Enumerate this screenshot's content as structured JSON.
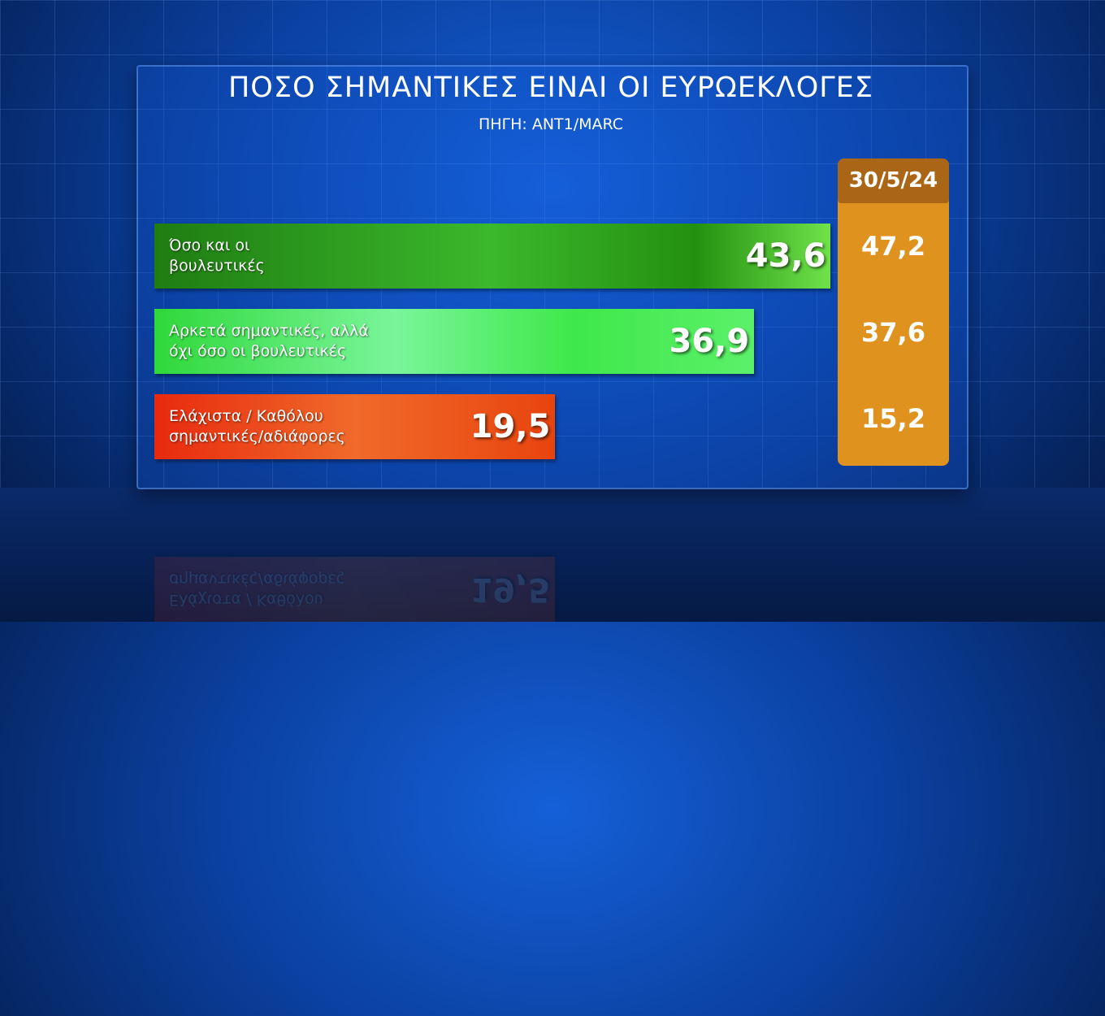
{
  "chart_data": {
    "type": "bar",
    "orientation": "horizontal",
    "title": "ΠΟΣΟ ΣΗΜΑΝΤΙΚΕΣ ΕΙΝΑΙ ΟΙ ΕΥΡΩΕΚΛΟΓΕΣ",
    "subtitle": "ΠΗΓΗ: ΑΝΤ1/MARC",
    "categories": [
      [
        "Όσο και οι",
        "βουλευτικές"
      ],
      [
        "Αρκετά σημαντικές, αλλά",
        "όχι όσο οι βουλευτικές"
      ],
      [
        "Ελάχιστα / Καθόλου",
        "σημαντικές/αδιάφορες"
      ]
    ],
    "values": [
      43.6,
      36.9,
      19.5
    ],
    "value_labels": [
      "43,6",
      "36,9",
      "19,5"
    ],
    "bar_colors": [
      "#2f9e1e",
      "#3fe84a",
      "#e83a10"
    ],
    "comparison": {
      "name": "30/5/24",
      "values": [
        47.2,
        37.6,
        15.2
      ],
      "value_labels": [
        "47,2",
        "37,6",
        "15,2"
      ],
      "color": "#e0921e"
    }
  }
}
